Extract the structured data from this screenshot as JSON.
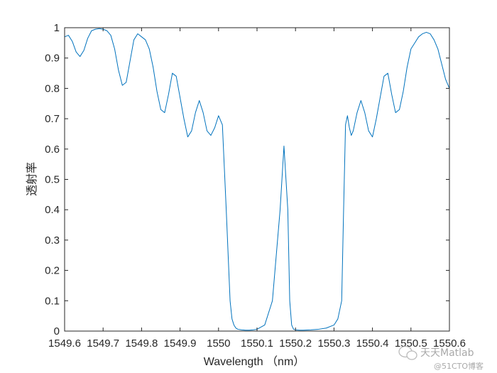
{
  "chart_data": {
    "type": "line",
    "title": "",
    "xlabel": "Wavelength （nm）",
    "ylabel": "透射率",
    "xlim": [
      1549.6,
      1550.6
    ],
    "ylim": [
      0,
      1
    ],
    "xticks": [
      1549.6,
      1549.7,
      1549.8,
      1549.9,
      1550,
      1550.1,
      1550.2,
      1550.3,
      1550.4,
      1550.5,
      1550.6
    ],
    "xtick_labels": [
      "1549.6",
      "1549.7",
      "1549.8",
      "1549.9",
      "1550",
      "1550.1",
      "1550.2",
      "1550.3",
      "1550.4",
      "1550.5",
      "1550.6"
    ],
    "yticks": [
      0,
      0.1,
      0.2,
      0.3,
      0.4,
      0.5,
      0.6,
      0.7,
      0.8,
      0.9,
      1
    ],
    "ytick_labels": [
      "0",
      "0.1",
      "0.2",
      "0.3",
      "0.4",
      "0.5",
      "0.6",
      "0.7",
      "0.8",
      "0.9",
      "1"
    ],
    "grid": false,
    "line_color": "#0072BD",
    "series": [
      {
        "x": [
          1549.6,
          1549.61,
          1549.62,
          1549.63,
          1549.64,
          1549.65,
          1549.66,
          1549.67,
          1549.68,
          1549.69,
          1549.7,
          1549.71,
          1549.72,
          1549.73,
          1549.74,
          1549.75,
          1549.76,
          1549.77,
          1549.78,
          1549.79,
          1549.8,
          1549.81,
          1549.82,
          1549.83,
          1549.84,
          1549.85,
          1549.86,
          1549.87,
          1549.88,
          1549.89,
          1549.9,
          1549.91,
          1549.92,
          1549.93,
          1549.94,
          1549.95,
          1549.96,
          1549.97,
          1549.98,
          1549.99,
          1550,
          1550.01,
          1550.02,
          1550.03,
          1550.035,
          1550.04,
          1550.045,
          1550.05,
          1550.06,
          1550.07,
          1550.08,
          1550.09,
          1550.1,
          1550.12,
          1550.14,
          1550.16,
          1550.17,
          1550.18,
          1550.185,
          1550.19,
          1550.195,
          1550.2,
          1550.21,
          1550.22,
          1550.24,
          1550.26,
          1550.28,
          1550.3,
          1550.31,
          1550.32,
          1550.325,
          1550.33,
          1550.335,
          1550.34,
          1550.345,
          1550.35,
          1550.36,
          1550.37,
          1550.38,
          1550.39,
          1550.4,
          1550.41,
          1550.42,
          1550.43,
          1550.44,
          1550.45,
          1550.46,
          1550.47,
          1550.48,
          1550.49,
          1550.5,
          1550.51,
          1550.52,
          1550.53,
          1550.54,
          1550.55,
          1550.56,
          1550.57,
          1550.58,
          1550.59,
          1550.6
        ],
        "y": [
          0.97,
          0.975,
          0.955,
          0.92,
          0.905,
          0.925,
          0.965,
          0.99,
          0.995,
          0.997,
          0.995,
          0.99,
          0.975,
          0.93,
          0.86,
          0.81,
          0.82,
          0.89,
          0.96,
          0.98,
          0.97,
          0.96,
          0.93,
          0.87,
          0.79,
          0.73,
          0.72,
          0.78,
          0.85,
          0.84,
          0.77,
          0.7,
          0.64,
          0.66,
          0.72,
          0.76,
          0.72,
          0.66,
          0.645,
          0.67,
          0.71,
          0.68,
          0.4,
          0.1,
          0.04,
          0.02,
          0.01,
          0.006,
          0.004,
          0.003,
          0.003,
          0.004,
          0.006,
          0.02,
          0.1,
          0.4,
          0.61,
          0.4,
          0.1,
          0.02,
          0.006,
          0.004,
          0.003,
          0.003,
          0.004,
          0.006,
          0.01,
          0.02,
          0.04,
          0.1,
          0.4,
          0.68,
          0.71,
          0.67,
          0.645,
          0.66,
          0.72,
          0.76,
          0.72,
          0.66,
          0.64,
          0.7,
          0.77,
          0.84,
          0.85,
          0.78,
          0.72,
          0.73,
          0.79,
          0.87,
          0.93,
          0.95,
          0.97,
          0.98,
          0.985,
          0.98,
          0.96,
          0.93,
          0.88,
          0.83,
          0.8
        ]
      }
    ]
  },
  "watermark": {
    "channel_name": "天天Matlab",
    "site_text": "@51CTO博客"
  }
}
